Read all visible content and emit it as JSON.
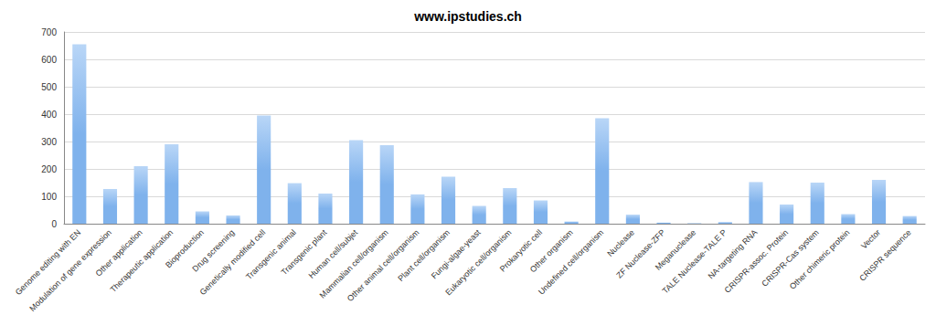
{
  "chart_data": {
    "type": "bar",
    "title": "www.ipstudies.ch",
    "categories": [
      "Genome editing with EN",
      "Modulation of gene expression",
      "Other application",
      "Therapeutic application",
      "Bioproduction",
      "Drug screening",
      "Genetically modified cell",
      "Transgenic animal",
      "Transgenic plant",
      "Human cell/subjet",
      "Mammalian cell/organism",
      "Other animal cell/organism",
      "Plant cell/organism",
      "Fungi-algae-yeast",
      "Eukaryotic cell/organism",
      "Prokaryotic cell",
      "Other organism",
      "Undefined cell/organism",
      "Nuclease",
      "ZF Nuclease-ZFP",
      "Meganuclease",
      "TALE Nuclease-TALE P",
      "NA-targeting RNA",
      "CRISPR-assoc. Protein",
      "CRISPR-Cas system",
      "Other chimeric protein",
      "Vector",
      "CRISPR sequence"
    ],
    "values": [
      655,
      127,
      210,
      290,
      45,
      30,
      395,
      148,
      110,
      305,
      287,
      107,
      172,
      65,
      130,
      85,
      8,
      385,
      33,
      4,
      2,
      6,
      152,
      70,
      150,
      35,
      160,
      28
    ],
    "color": "#7fb2ec",
    "ylim": [
      0,
      700
    ],
    "yticks": [
      0,
      100,
      200,
      300,
      400,
      500,
      600,
      700
    ],
    "grid": true
  }
}
